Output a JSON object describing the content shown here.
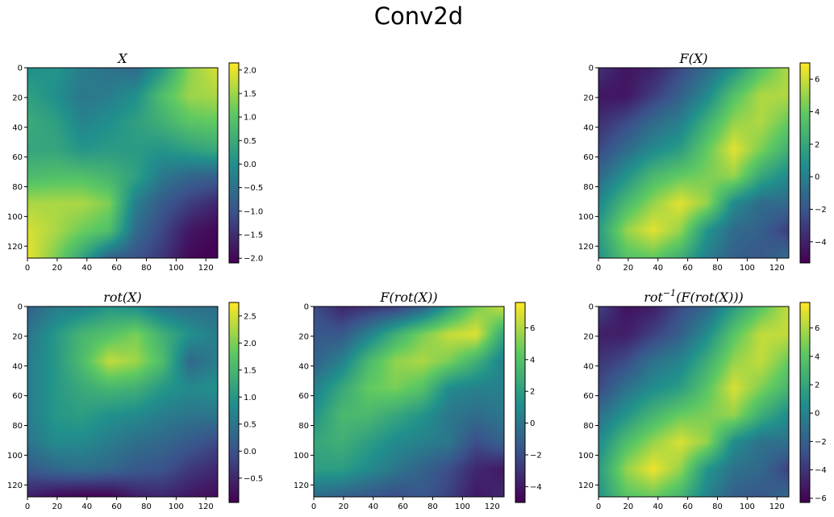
{
  "figure": {
    "title": "Conv2d"
  },
  "colormap": {
    "name": "viridis",
    "stops": [
      "#440154",
      "#3b528b",
      "#21918c",
      "#5ec962",
      "#fde725"
    ]
  },
  "chart_data": [
    {
      "type": "heatmap",
      "id": "X",
      "title_base": "X",
      "title_sup": "",
      "title_rest": "",
      "xlim": [
        0,
        128
      ],
      "ylim": [
        0,
        128
      ],
      "xticks": [
        "0",
        "20",
        "40",
        "60",
        "80",
        "100",
        "120"
      ],
      "yticks": [
        "0",
        "20",
        "40",
        "60",
        "80",
        "100",
        "120"
      ],
      "colorbar_range": [
        -2.1,
        2.15
      ],
      "colorbar_ticks": [
        {
          "value": 2.0,
          "label": "2.0"
        },
        {
          "value": 1.5,
          "label": "1.5"
        },
        {
          "value": 1.0,
          "label": "1.0"
        },
        {
          "value": 0.5,
          "label": "0.5"
        },
        {
          "value": 0.0,
          "label": "0.0"
        },
        {
          "value": -0.5,
          "label": "−0.5"
        },
        {
          "value": -1.0,
          "label": "−1.0"
        },
        {
          "value": -1.5,
          "label": "−1.5"
        },
        {
          "value": -2.0,
          "label": "−2.0"
        }
      ],
      "field": [
        [
          0.0,
          0.1,
          -0.3,
          -0.5,
          -0.6,
          0.2,
          1.4,
          1.9
        ],
        [
          0.3,
          0.0,
          -0.4,
          -0.3,
          0.0,
          0.9,
          1.5,
          1.6
        ],
        [
          0.5,
          0.3,
          -0.2,
          0.0,
          0.3,
          0.6,
          1.0,
          1.1
        ],
        [
          0.4,
          0.4,
          0.1,
          0.2,
          0.2,
          0.1,
          0.3,
          0.5
        ],
        [
          0.8,
          0.9,
          0.9,
          0.7,
          0.3,
          -0.4,
          -0.7,
          -0.8
        ],
        [
          1.6,
          1.6,
          1.6,
          1.3,
          -0.3,
          -0.9,
          -1.3,
          -1.6
        ],
        [
          1.9,
          1.6,
          1.2,
          0.9,
          -0.6,
          -1.2,
          -1.8,
          -2.0
        ],
        [
          2.0,
          1.3,
          0.4,
          -0.7,
          -1.0,
          -1.4,
          -2.0,
          -2.1
        ]
      ]
    },
    {
      "type": "heatmap",
      "id": "FX",
      "title_base": "F(X)",
      "title_sup": "",
      "title_rest": "",
      "xlim": [
        0,
        128
      ],
      "ylim": [
        0,
        128
      ],
      "xticks": [
        "0",
        "20",
        "40",
        "60",
        "80",
        "100",
        "120"
      ],
      "yticks": [
        "0",
        "20",
        "40",
        "60",
        "80",
        "100",
        "120"
      ],
      "colorbar_range": [
        -5.3,
        7.0
      ],
      "colorbar_ticks": [
        {
          "value": 6,
          "label": "6"
        },
        {
          "value": 4,
          "label": "4"
        },
        {
          "value": 2,
          "label": "2"
        },
        {
          "value": 0,
          "label": "0"
        },
        {
          "value": -2,
          "label": "−2"
        },
        {
          "value": -4,
          "label": "−4"
        }
      ],
      "field": [
        [
          -3.5,
          -4.5,
          -4.0,
          -2.5,
          -1.0,
          1.0,
          3.5,
          5.5
        ],
        [
          -4.5,
          -4.5,
          -3.0,
          -1.5,
          0.5,
          3.5,
          5.5,
          5.5
        ],
        [
          -3.5,
          -2.5,
          -1.0,
          0.0,
          2.5,
          5.0,
          5.5,
          4.0
        ],
        [
          -2.5,
          -1.0,
          0.5,
          1.5,
          4.0,
          6.5,
          4.5,
          2.5
        ],
        [
          -1.0,
          1.0,
          3.0,
          4.0,
          4.5,
          5.0,
          2.0,
          0.5
        ],
        [
          0.5,
          3.0,
          5.0,
          6.5,
          5.0,
          0.5,
          -1.0,
          -1.0
        ],
        [
          1.5,
          5.0,
          6.5,
          5.0,
          1.0,
          -1.0,
          -1.5,
          -3.0
        ],
        [
          1.0,
          3.5,
          4.0,
          2.5,
          0.0,
          -1.5,
          -2.0,
          -1.0
        ]
      ]
    },
    {
      "type": "heatmap",
      "id": "rotX",
      "title_base": "rot(X)",
      "title_sup": "",
      "title_rest": "",
      "xlim": [
        0,
        128
      ],
      "ylim": [
        0,
        128
      ],
      "xticks": [
        "0",
        "20",
        "40",
        "60",
        "80",
        "100",
        "120"
      ],
      "yticks": [
        "0",
        "20",
        "40",
        "60",
        "80",
        "100",
        "120"
      ],
      "colorbar_range": [
        -0.95,
        2.75
      ],
      "colorbar_ticks": [
        {
          "value": 2.5,
          "label": "2.5"
        },
        {
          "value": 2.0,
          "label": "2.0"
        },
        {
          "value": 1.5,
          "label": "1.5"
        },
        {
          "value": 1.0,
          "label": "1.0"
        },
        {
          "value": 0.5,
          "label": "0.5"
        },
        {
          "value": 0.0,
          "label": "0.0"
        },
        {
          "value": -0.5,
          "label": "−0.5"
        }
      ],
      "field": [
        [
          0.2,
          0.6,
          0.7,
          1.0,
          0.9,
          0.5,
          0.4,
          0.4
        ],
        [
          0.5,
          1.0,
          1.5,
          1.7,
          2.0,
          1.4,
          0.9,
          0.6
        ],
        [
          0.6,
          1.0,
          1.6,
          2.4,
          2.2,
          1.6,
          0.3,
          0.6
        ],
        [
          0.6,
          1.0,
          1.3,
          1.5,
          1.4,
          1.0,
          0.8,
          0.9
        ],
        [
          0.6,
          1.0,
          1.1,
          0.9,
          0.8,
          0.6,
          0.5,
          0.5
        ],
        [
          0.5,
          0.8,
          0.8,
          0.6,
          0.4,
          0.3,
          0.1,
          -0.1
        ],
        [
          0.1,
          0.3,
          0.4,
          0.3,
          0.1,
          0.0,
          -0.3,
          -0.5
        ],
        [
          -0.6,
          -0.8,
          -0.9,
          -0.9,
          -0.6,
          -0.5,
          -0.7,
          -0.8
        ]
      ]
    },
    {
      "type": "heatmap",
      "id": "FrotX",
      "title_base": "F(rot(X))",
      "title_sup": "",
      "title_rest": "",
      "xlim": [
        0,
        128
      ],
      "ylim": [
        0,
        128
      ],
      "xticks": [
        "0",
        "20",
        "40",
        "60",
        "80",
        "100",
        "120"
      ],
      "yticks": [
        "0",
        "20",
        "40",
        "60",
        "80",
        "100",
        "120"
      ],
      "colorbar_range": [
        -5.0,
        7.6
      ],
      "colorbar_ticks": [
        {
          "value": 6,
          "label": "6"
        },
        {
          "value": 4,
          "label": "4"
        },
        {
          "value": 2,
          "label": "2"
        },
        {
          "value": 0,
          "label": "0"
        },
        {
          "value": -2,
          "label": "−2"
        },
        {
          "value": -4,
          "label": "−4"
        }
      ],
      "field": [
        [
          -2.0,
          -3.5,
          -3.0,
          -2.5,
          -1.0,
          2.0,
          5.0,
          6.5
        ],
        [
          -1.5,
          -1.5,
          0.5,
          3.0,
          5.0,
          6.5,
          7.0,
          2.5
        ],
        [
          -1.0,
          0.5,
          3.5,
          5.5,
          6.0,
          5.0,
          3.0,
          0.5
        ],
        [
          0.5,
          2.5,
          4.5,
          5.0,
          4.0,
          1.0,
          0.5,
          0.5
        ],
        [
          1.5,
          3.5,
          3.5,
          2.5,
          1.5,
          0.0,
          -0.5,
          0.0
        ],
        [
          2.5,
          3.0,
          2.0,
          1.0,
          0.5,
          0.0,
          -2.0,
          -1.0
        ],
        [
          2.0,
          2.0,
          1.0,
          0.0,
          -1.0,
          -2.0,
          -3.5,
          -4.0
        ],
        [
          -0.5,
          -1.0,
          -1.5,
          -2.0,
          -1.5,
          -2.5,
          -4.0,
          -3.5
        ]
      ]
    },
    {
      "type": "heatmap",
      "id": "rotinvFrotX",
      "title_base": "rot",
      "title_sup": "−1",
      "title_rest": "(F(rot(X)))",
      "xlim": [
        0,
        128
      ],
      "ylim": [
        0,
        128
      ],
      "xticks": [
        "0",
        "20",
        "40",
        "60",
        "80",
        "100",
        "120"
      ],
      "yticks": [
        "0",
        "20",
        "40",
        "60",
        "80",
        "100",
        "120"
      ],
      "colorbar_range": [
        -6.3,
        7.8
      ],
      "colorbar_ticks": [
        {
          "value": 6,
          "label": "6"
        },
        {
          "value": 4,
          "label": "4"
        },
        {
          "value": 2,
          "label": "2"
        },
        {
          "value": 0,
          "label": "0"
        },
        {
          "value": -2,
          "label": "−2"
        },
        {
          "value": -4,
          "label": "−4"
        },
        {
          "value": -6,
          "label": "−6"
        }
      ],
      "field": [
        [
          -3.5,
          -5.5,
          -5.0,
          -3.0,
          -1.5,
          1.5,
          4.0,
          6.5
        ],
        [
          -5.0,
          -5.0,
          -3.5,
          -2.0,
          0.5,
          4.0,
          6.5,
          6.5
        ],
        [
          -4.0,
          -3.0,
          -1.0,
          0.0,
          2.5,
          5.5,
          6.5,
          4.5
        ],
        [
          -3.0,
          -1.0,
          0.5,
          1.5,
          4.0,
          7.0,
          5.0,
          3.0
        ],
        [
          -1.0,
          1.0,
          3.0,
          4.5,
          5.0,
          5.5,
          2.5,
          0.5
        ],
        [
          0.5,
          3.5,
          5.5,
          7.0,
          5.5,
          0.5,
          -1.0,
          -1.0
        ],
        [
          1.5,
          5.5,
          7.5,
          5.5,
          1.0,
          -1.0,
          -1.5,
          -3.5
        ],
        [
          1.0,
          4.0,
          4.5,
          3.0,
          0.0,
          -2.0,
          -2.5,
          -1.5
        ]
      ]
    }
  ]
}
